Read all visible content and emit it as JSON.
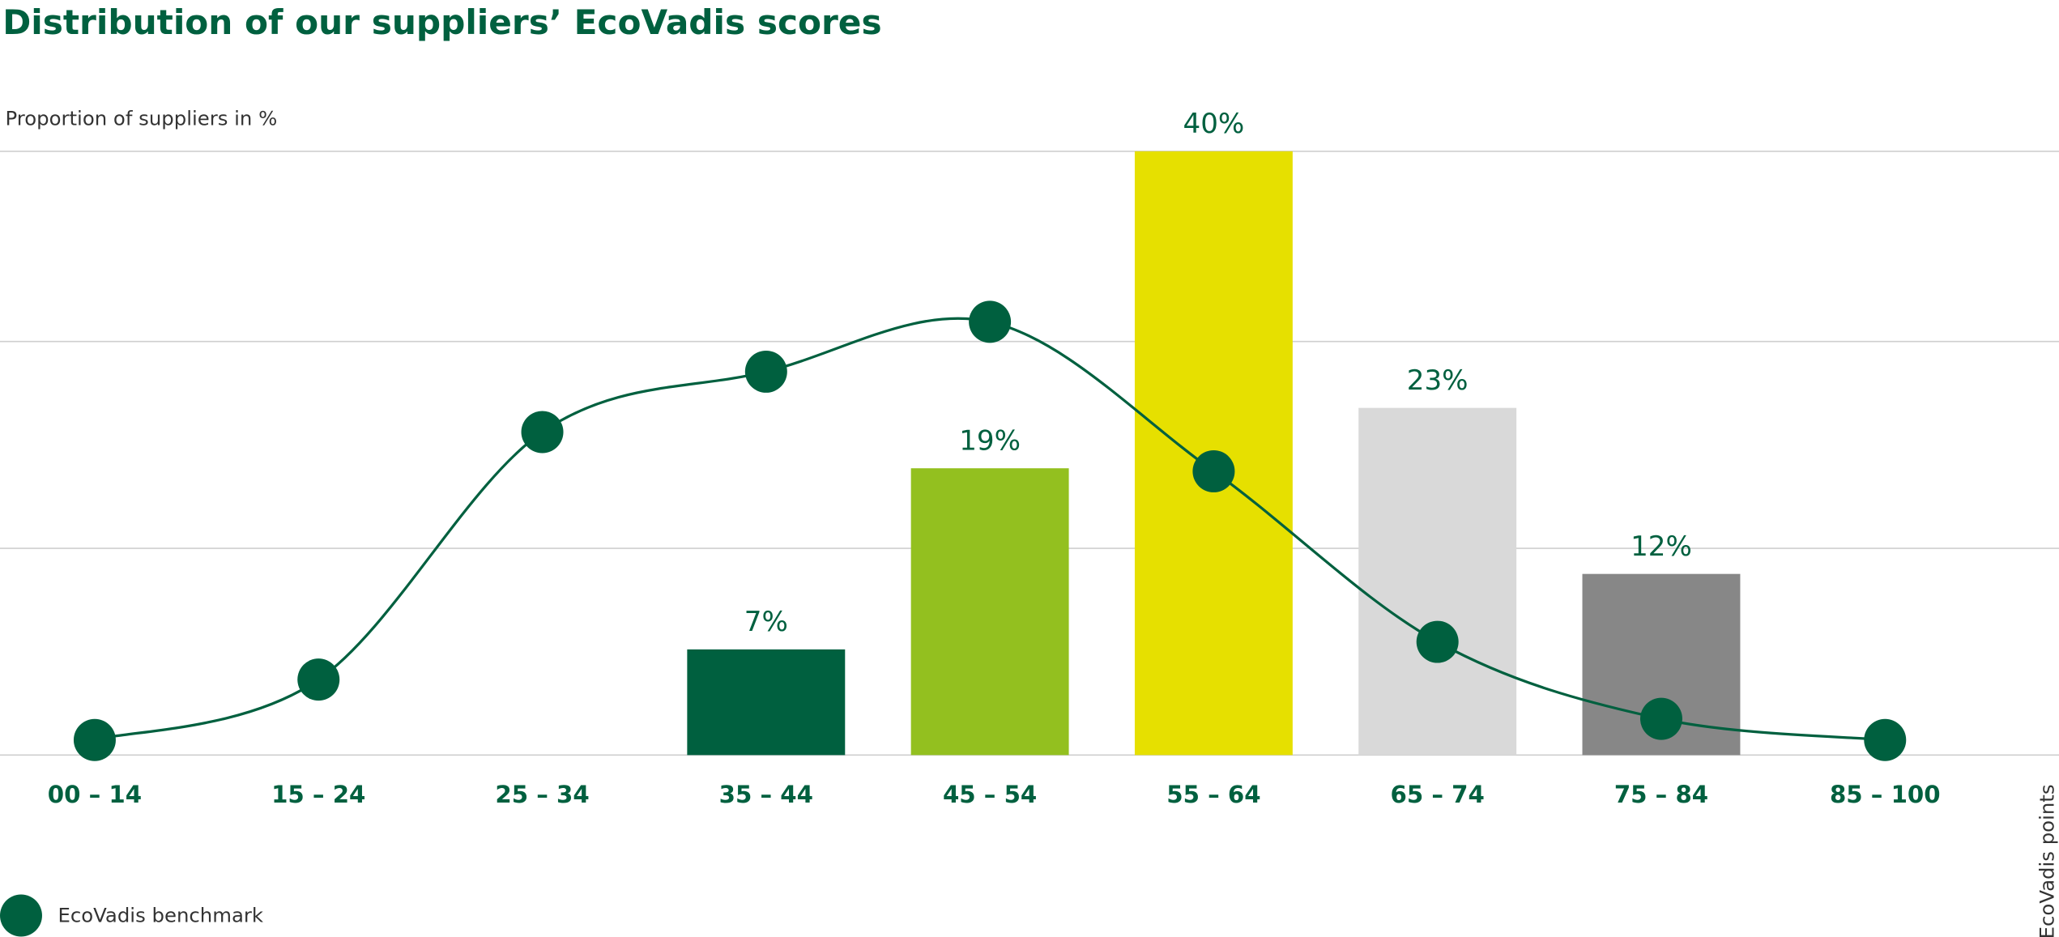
{
  "chart_data": {
    "type": "bar",
    "title": "Distribution of our suppliers’ EcoVadis scores",
    "y_label": "Proportion of suppliers in %",
    "x_label": "EcoVadis points",
    "categories": [
      "00 – 14",
      "15 – 24",
      "25 – 34",
      "35 – 44",
      "45 – 54",
      "55 – 64",
      "65 – 74",
      "75 – 84",
      "85 – 100"
    ],
    "values": [
      null,
      null,
      null,
      7,
      19,
      40,
      23,
      12,
      null
    ],
    "value_labels": [
      null,
      null,
      null,
      "7%",
      "19%",
      "40%",
      "23%",
      "12%",
      null
    ],
    "colors": [
      null,
      null,
      null,
      "#00603f",
      "#93c01f",
      "#e6e000",
      "#d9d9d9",
      "#878787",
      null
    ],
    "series": [
      {
        "name": "EcoVadis benchmark",
        "type": "line",
        "color": "#00603f",
        "values": [
          1.0,
          5.0,
          21.4,
          25.4,
          28.7,
          18.8,
          7.5,
          2.4,
          1.0
        ]
      }
    ],
    "ylim": [
      0,
      40
    ],
    "yticks": [
      0,
      13.7,
      27.4,
      40
    ],
    "grid": true,
    "legend": "bottom-left"
  }
}
